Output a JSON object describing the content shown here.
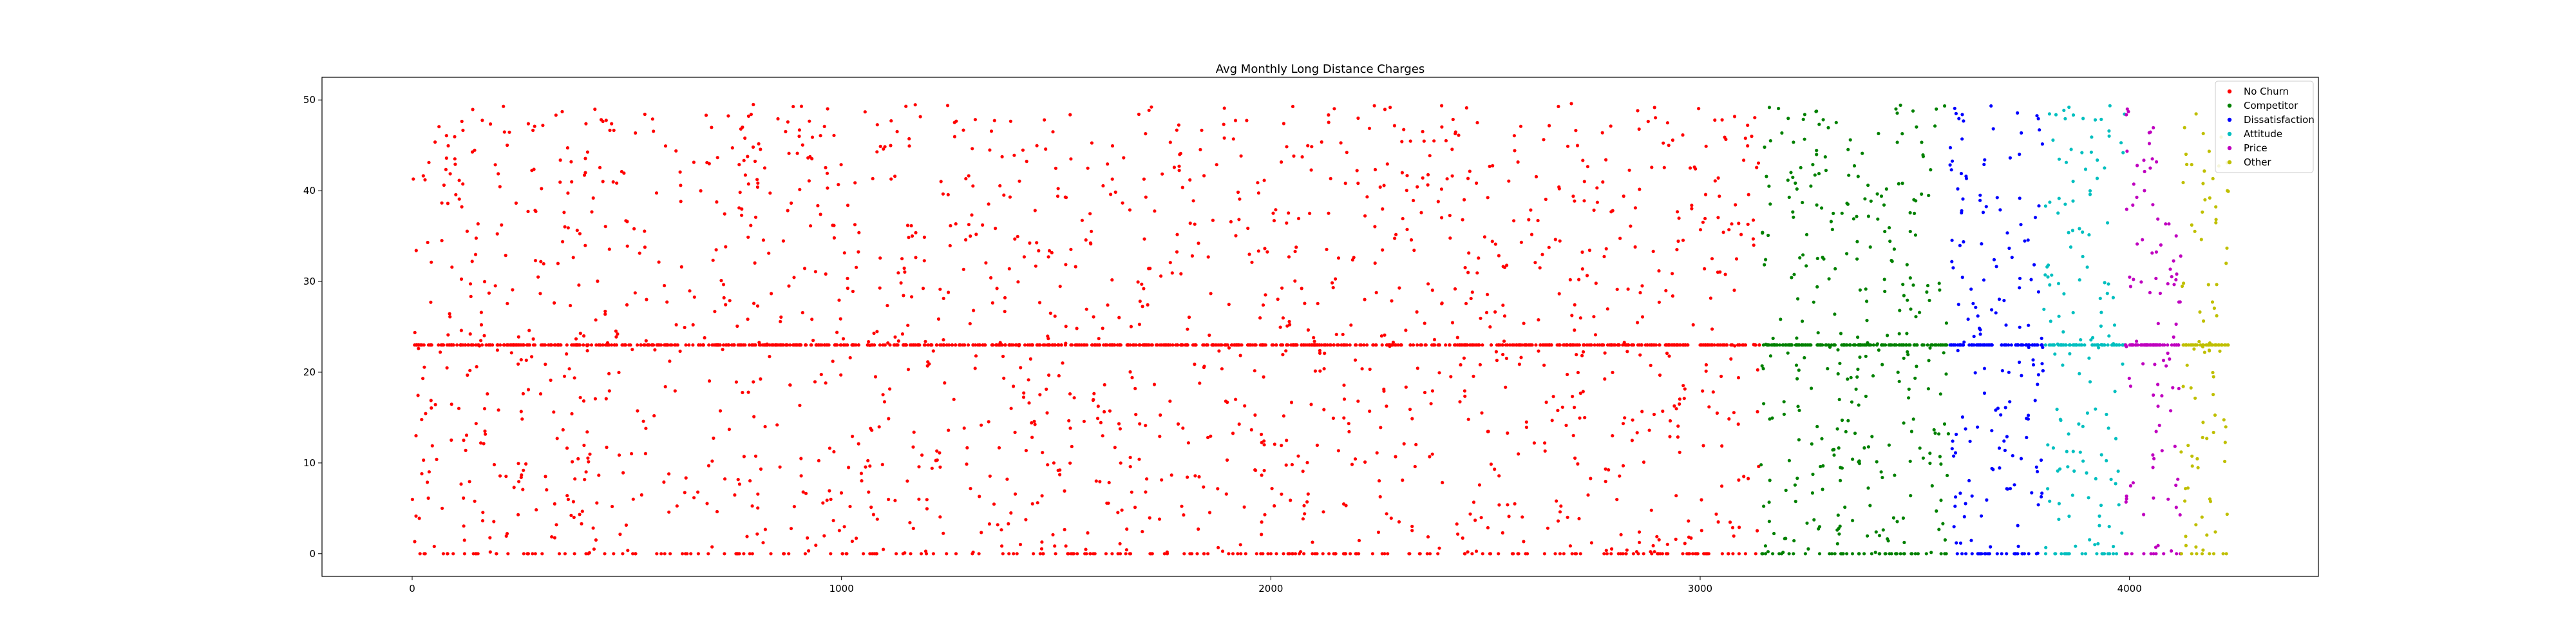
{
  "chart_data": {
    "type": "scatter",
    "title": "Avg Monthly Long Distance Charges",
    "xlabel": "",
    "ylabel": "",
    "xlim": [
      -210,
      4440
    ],
    "ylim": [
      -2.5,
      52.5
    ],
    "xticks": [
      0,
      1000,
      2000,
      3000,
      4000
    ],
    "yticks": [
      0,
      10,
      20,
      30,
      40,
      50
    ],
    "grid": false,
    "legend_position": "top-right",
    "series": [
      {
        "name": "No Churn",
        "color": "#ff0000",
        "x_range": [
          0,
          3140
        ],
        "points": 2600,
        "points_sample": [
          [
            30,
            41.2
          ],
          [
            120,
            12.5
          ],
          [
            260,
            0
          ],
          [
            410,
            23.0
          ],
          [
            560,
            47.9
          ],
          [
            720,
            30.1
          ],
          [
            880,
            18.6
          ],
          [
            1020,
            5.2
          ],
          [
            1150,
            49.3
          ],
          [
            1300,
            35.0
          ],
          [
            1480,
            9.8
          ],
          [
            1620,
            27.4
          ],
          [
            1790,
            44.1
          ],
          [
            1930,
            0
          ],
          [
            2080,
            23.0
          ],
          [
            2230,
            15.7
          ],
          [
            2390,
            38.8
          ],
          [
            2540,
            2.3
          ],
          [
            2700,
            49.6
          ],
          [
            2860,
            21.9
          ],
          [
            3010,
            31.4
          ],
          [
            3120,
            46.0
          ]
        ]
      },
      {
        "name": "Competitor",
        "color": "#008000",
        "x_range": [
          3140,
          3580
        ],
        "points": 480,
        "points_sample": [
          [
            3150,
            44.8
          ],
          [
            3200,
            23.0
          ],
          [
            3260,
            12.1
          ],
          [
            3310,
            37.5
          ],
          [
            3370,
            0
          ],
          [
            3430,
            28.9
          ],
          [
            3490,
            6.4
          ],
          [
            3550,
            49.0
          ]
        ]
      },
      {
        "name": "Dissatisfaction",
        "color": "#0000ff",
        "x_range": [
          3580,
          3800
        ],
        "points": 240,
        "points_sample": [
          [
            3600,
            40.2
          ],
          [
            3650,
            23.0
          ],
          [
            3700,
            15.3
          ],
          [
            3750,
            0
          ],
          [
            3790,
            46.7
          ]
        ]
      },
      {
        "name": "Attitude",
        "color": "#00bfbf",
        "x_range": [
          3800,
          3990
        ],
        "points": 200,
        "points_sample": [
          [
            3810,
            30.5
          ],
          [
            3860,
            23.0
          ],
          [
            3900,
            8.9
          ],
          [
            3950,
            0
          ],
          [
            3985,
            44.2
          ]
        ]
      },
      {
        "name": "Price",
        "color": "#bf00bf",
        "x_range": [
          3990,
          4120
        ],
        "points": 150,
        "points_sample": [
          [
            3995,
            49.0
          ],
          [
            4030,
            34.6
          ],
          [
            4060,
            23.0
          ],
          [
            4090,
            6.0
          ],
          [
            4115,
            18.2
          ]
        ]
      },
      {
        "name": "Other",
        "color": "#bfbf00",
        "x_range": [
          4120,
          4230
        ],
        "points": 120,
        "points_sample": [
          [
            4125,
            40.9
          ],
          [
            4150,
            23.0
          ],
          [
            4180,
            12.7
          ],
          [
            4200,
            2.4
          ],
          [
            4225,
            32.0
          ]
        ]
      }
    ]
  }
}
